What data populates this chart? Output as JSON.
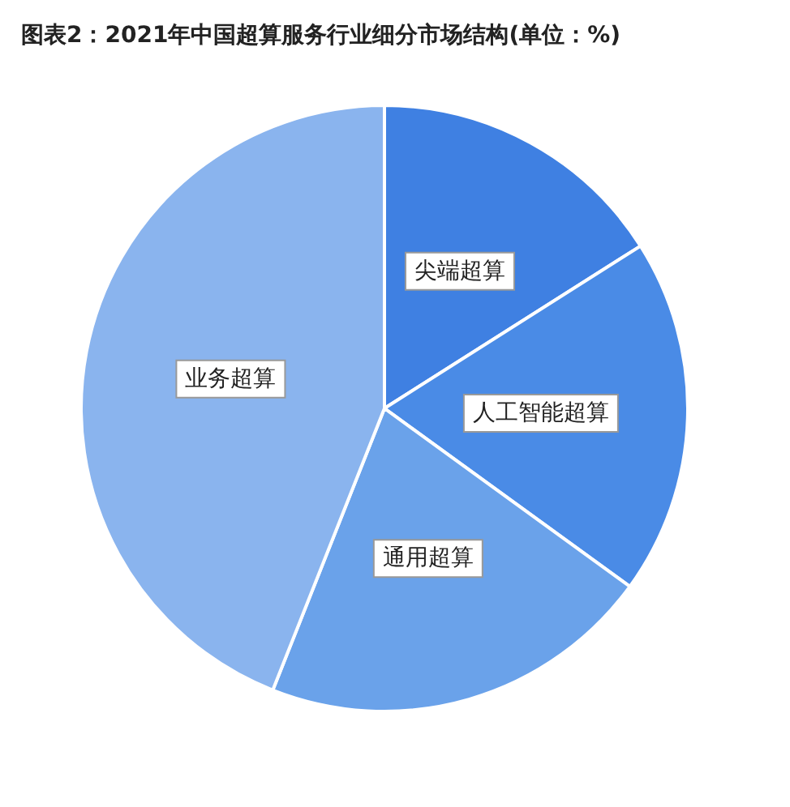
{
  "chart_data": {
    "type": "pie",
    "title": "图表2：2021年中国超算服务行业细分市场结构(单位：%)",
    "categories": [
      "尖端超算",
      "人工智能超算",
      "通用超算",
      "业务超算"
    ],
    "values": [
      16,
      19,
      21,
      44
    ],
    "colors": [
      "#3f80e2",
      "#4a8be6",
      "#6aa2ea",
      "#8ab4ee"
    ],
    "legend": false
  }
}
